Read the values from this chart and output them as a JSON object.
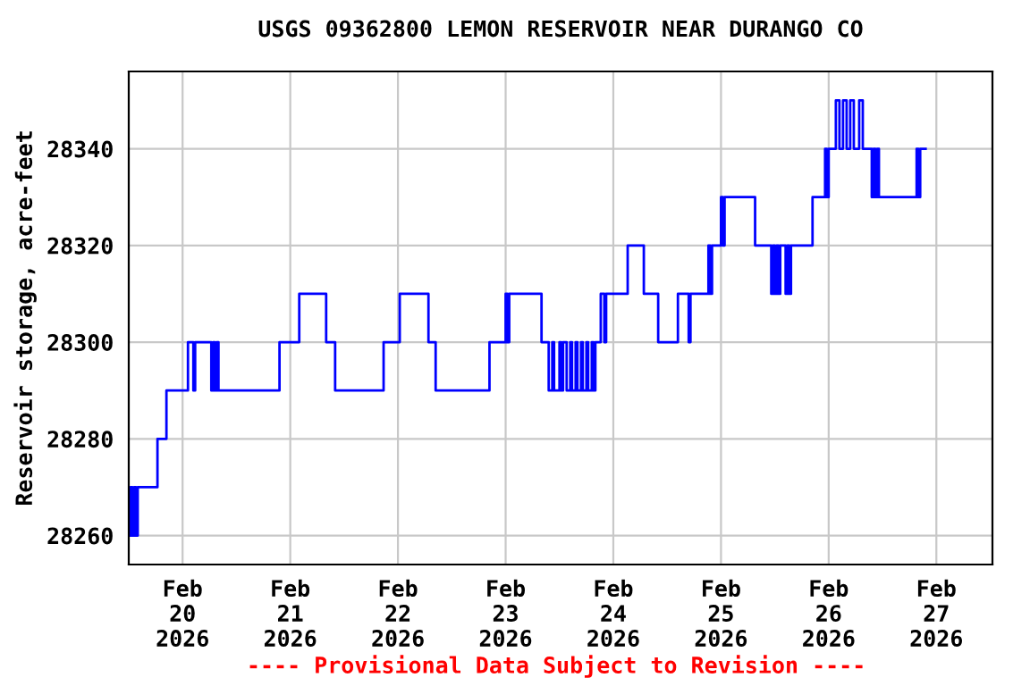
{
  "chart_data": {
    "type": "step",
    "title": "USGS 09362800 LEMON RESERVOIR NEAR DURANGO CO",
    "ylabel": "Reservoir storage, acre-feet",
    "annotations": [
      "---- Provisional Data Subject to Revision ----"
    ],
    "xlim": [
      "2026-02-19T12:00",
      "2026-02-27T12:30"
    ],
    "xticks": [
      {
        "value": "2026-02-20",
        "label": "Feb\n20\n2026"
      },
      {
        "value": "2026-02-21",
        "label": "Feb\n21\n2026"
      },
      {
        "value": "2026-02-22",
        "label": "Feb\n22\n2026"
      },
      {
        "value": "2026-02-23",
        "label": "Feb\n23\n2026"
      },
      {
        "value": "2026-02-24",
        "label": "Feb\n24\n2026"
      },
      {
        "value": "2026-02-25",
        "label": "Feb\n25\n2026"
      },
      {
        "value": "2026-02-26",
        "label": "Feb\n26\n2026"
      },
      {
        "value": "2026-02-27",
        "label": "Feb\n27\n2026"
      }
    ],
    "ylim": [
      28254,
      28356
    ],
    "yticks": [
      28260,
      28280,
      28300,
      28320,
      28340
    ],
    "grid": true,
    "line_style": "solid",
    "marker": "none",
    "series": [
      {
        "color": "#0000ff",
        "x": [
          "2026-02-19T12:00",
          "2026-02-19T12:24",
          "2026-02-19T12:48",
          "2026-02-19T13:12",
          "2026-02-19T13:36",
          "2026-02-19T14:00",
          "2026-02-19T18:24",
          "2026-02-19T20:24",
          "2026-02-20T01:12",
          "2026-02-20T02:24",
          "2026-02-20T02:48",
          "2026-02-20T06:24",
          "2026-02-20T06:48",
          "2026-02-20T07:12",
          "2026-02-20T07:36",
          "2026-02-20T08:00",
          "2026-02-20T21:36",
          "2026-02-21T02:00",
          "2026-02-21T08:00",
          "2026-02-21T10:00",
          "2026-02-21T20:48",
          "2026-02-22T00:24",
          "2026-02-22T06:48",
          "2026-02-22T08:24",
          "2026-02-22T20:24",
          "2026-02-23T00:00",
          "2026-02-23T00:24",
          "2026-02-23T00:48",
          "2026-02-23T08:00",
          "2026-02-23T09:36",
          "2026-02-23T10:24",
          "2026-02-23T10:48",
          "2026-02-23T12:00",
          "2026-02-23T12:24",
          "2026-02-23T12:48",
          "2026-02-23T13:36",
          "2026-02-23T14:24",
          "2026-02-23T14:48",
          "2026-02-23T15:36",
          "2026-02-23T16:00",
          "2026-02-23T16:48",
          "2026-02-23T17:12",
          "2026-02-23T18:00",
          "2026-02-23T18:24",
          "2026-02-23T19:12",
          "2026-02-23T19:36",
          "2026-02-23T20:00",
          "2026-02-23T21:12",
          "2026-02-23T22:00",
          "2026-02-23T22:24",
          "2026-02-24T03:12",
          "2026-02-24T06:48",
          "2026-02-24T10:00",
          "2026-02-24T14:24",
          "2026-02-24T16:48",
          "2026-02-24T17:12",
          "2026-02-24T21:12",
          "2026-02-24T21:36",
          "2026-02-24T22:00",
          "2026-02-25T00:00",
          "2026-02-25T00:24",
          "2026-02-25T00:48",
          "2026-02-25T07:36",
          "2026-02-25T11:12",
          "2026-02-25T11:36",
          "2026-02-25T12:00",
          "2026-02-25T12:24",
          "2026-02-25T12:48",
          "2026-02-25T13:12",
          "2026-02-25T14:24",
          "2026-02-25T14:48",
          "2026-02-25T15:12",
          "2026-02-25T15:36",
          "2026-02-25T20:24",
          "2026-02-25T23:12",
          "2026-02-25T23:36",
          "2026-02-26T00:00",
          "2026-02-26T01:36",
          "2026-02-26T02:24",
          "2026-02-26T03:12",
          "2026-02-26T04:00",
          "2026-02-26T04:48",
          "2026-02-26T05:36",
          "2026-02-26T06:48",
          "2026-02-26T07:36",
          "2026-02-26T09:36",
          "2026-02-26T10:00",
          "2026-02-26T10:24",
          "2026-02-26T10:48",
          "2026-02-26T11:12",
          "2026-02-26T19:36",
          "2026-02-26T20:00",
          "2026-02-26T20:24",
          "2026-02-26T21:36"
        ],
        "values": [
          28260,
          28270,
          28260,
          28270,
          28260,
          28270,
          28280,
          28290,
          28300,
          28290,
          28300,
          28290,
          28300,
          28290,
          28300,
          28290,
          28300,
          28310,
          28300,
          28290,
          28300,
          28310,
          28300,
          28290,
          28300,
          28310,
          28300,
          28310,
          28300,
          28290,
          28300,
          28290,
          28300,
          28290,
          28300,
          28290,
          28300,
          28290,
          28300,
          28290,
          28300,
          28290,
          28300,
          28290,
          28300,
          28290,
          28300,
          28310,
          28300,
          28310,
          28320,
          28310,
          28300,
          28310,
          28300,
          28310,
          28320,
          28310,
          28320,
          28330,
          28320,
          28330,
          28320,
          28310,
          28320,
          28310,
          28320,
          28310,
          28320,
          28310,
          28320,
          28310,
          28320,
          28330,
          28340,
          28330,
          28340,
          28350,
          28340,
          28350,
          28340,
          28350,
          28340,
          28350,
          28340,
          28330,
          28340,
          28330,
          28340,
          28330,
          28340,
          28330,
          28340,
          28340
        ]
      }
    ]
  }
}
